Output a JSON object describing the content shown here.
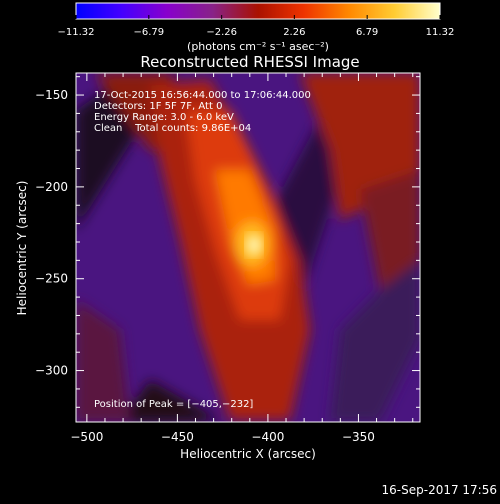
{
  "chart_data": {
    "type": "heatmap",
    "title": "Reconstructed RHESSI Image",
    "xlabel": "Heliocentric X (arcsec)",
    "ylabel": "Heliocentric Y (arcsec)",
    "xlim": [
      -506,
      -316
    ],
    "ylim": [
      -328,
      -138
    ],
    "xticks": [
      -500,
      -450,
      -400,
      -350
    ],
    "xtick_labels": [
      "−500",
      "−450",
      "−400",
      "−350"
    ],
    "yticks": [
      -150,
      -200,
      -250,
      -300
    ],
    "ytick_labels": [
      "−150",
      "−200",
      "−250",
      "−300"
    ],
    "peak": [
      -405,
      -232
    ],
    "colorbar": {
      "ticks": [
        -11.32,
        -6.79,
        -2.26,
        2.26,
        6.79,
        11.32
      ],
      "tick_labels": [
        "−11.32",
        "−6.79",
        "−2.26",
        "2.26",
        "6.79",
        "11.32"
      ],
      "range": [
        -11.32,
        11.32
      ],
      "unit_label": "(photons cm⁻² s⁻¹ asec⁻²)",
      "colors": [
        "#0000ff",
        "#4400ff",
        "#8800cc",
        "#882288",
        "#aa1100",
        "#ee3300",
        "#ff8800",
        "#ffcc33",
        "#ffffcc"
      ]
    },
    "annotations": {
      "time_range": "17-Oct-2015 16:56:44.000 to 17:06:44.000",
      "detectors": "Detectors: 1F 5F 7F, Att 0",
      "energy": "Energy Range: 3.0 - 6.0 keV",
      "clean": "Clean    Total counts: 9.86E+04",
      "peak_text": "Position of Peak = [−405,−232]"
    }
  },
  "footer": {
    "timestamp": "16-Sep-2017 17:56"
  }
}
